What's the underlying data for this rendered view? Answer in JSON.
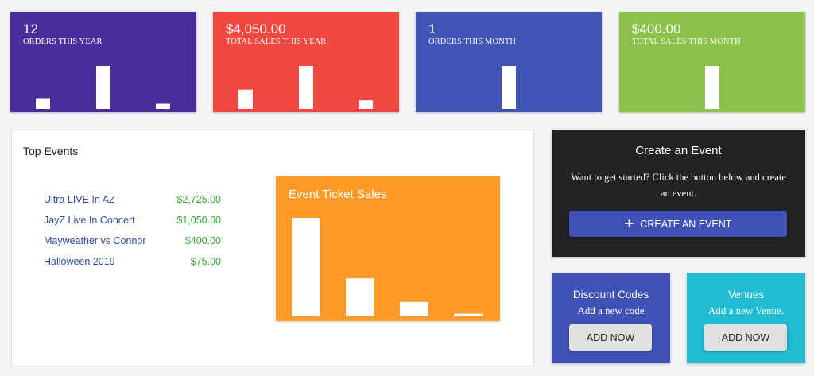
{
  "stats": [
    {
      "value": "12",
      "label": "ORDERS THIS YEAR",
      "color": "#4b2e9c",
      "bars": [
        0.25,
        1.0,
        0.12
      ]
    },
    {
      "value": "$4,050.00",
      "label": "TOTAL SALES THIS YEAR",
      "color": "#f14840",
      "bars": [
        0.45,
        1.0,
        0.2
      ]
    },
    {
      "value": "1",
      "label": "ORDERS THIS MONTH",
      "color": "#4054b6",
      "bars": [
        1.0
      ]
    },
    {
      "value": "$400.00",
      "label": "TOTAL SALES THIS MONTH",
      "color": "#8bc24c",
      "bars": [
        1.0
      ]
    }
  ],
  "top_events": {
    "title": "Top Events",
    "events": [
      {
        "name": "Ultra LIVE In AZ",
        "amount": "$2,725.00"
      },
      {
        "name": "JayZ Live In Concert",
        "amount": "$1,050.00"
      },
      {
        "name": "Mayweather vs Connor",
        "amount": "$400.00"
      },
      {
        "name": "Halloween 2019",
        "amount": "$75.00"
      }
    ]
  },
  "chart_data": {
    "type": "bar",
    "title": "Event Ticket Sales",
    "categories": [
      "Ultra LIVE In AZ",
      "JayZ Live In Concert",
      "Mayweather vs Connor",
      "Halloween 2019"
    ],
    "values": [
      2725,
      1050,
      400,
      75
    ],
    "ylim": [
      0,
      2725
    ],
    "grid": false,
    "color": "#ffffff",
    "background": "#ff9a26"
  },
  "create_event": {
    "title": "Create an Event",
    "description": "Want to get started? Click the button below and create an event.",
    "button_label": "CREATE AN EVENT",
    "button_icon": "plus-icon",
    "color": "#232323"
  },
  "discount": {
    "title": "Discount Codes",
    "subtitle": "Add a new code",
    "button_label": "ADD NOW",
    "color": "#3f51b5"
  },
  "venues": {
    "title": "Venues",
    "subtitle": "Add a new Venue.",
    "button_label": "ADD NOW",
    "color": "#1fbcd2"
  }
}
